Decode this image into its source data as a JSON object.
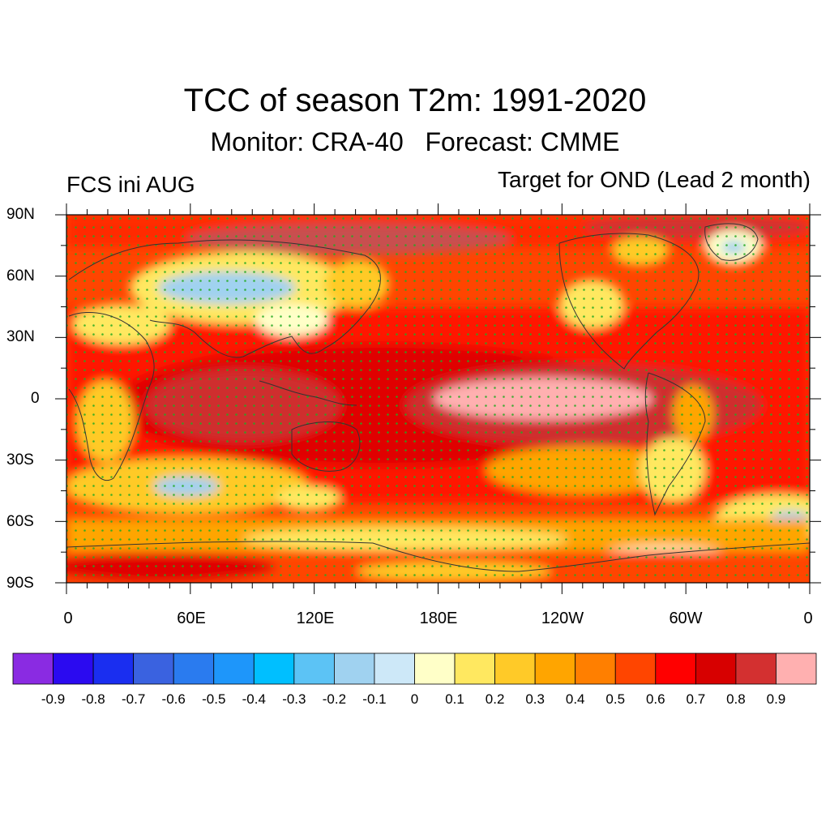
{
  "header": {
    "title": "TCC of season T2m: 1991-2020",
    "subtitle": "Monitor: CRA-40   Forecast: CMME",
    "left_label": "FCS ini AUG",
    "right_label": "Target for OND (Lead 2 month)"
  },
  "axes": {
    "lat_labels": [
      "90N",
      "60N",
      "30N",
      "0",
      "30S",
      "60S",
      "90S"
    ],
    "lon_labels": [
      "0",
      "60E",
      "120E",
      "180E",
      "120W",
      "60W",
      "0"
    ]
  },
  "legend": {
    "colors": [
      "#8a2be2",
      "#2b0af0",
      "#1a2ef0",
      "#3a62e0",
      "#2a7bef",
      "#1e96fa",
      "#00bfff",
      "#5cc3f5",
      "#a0d2f0",
      "#cde8f8",
      "#ffffc8",
      "#ffe860",
      "#ffca28",
      "#ffa500",
      "#ff7f00",
      "#ff4500",
      "#ff0000",
      "#d70000",
      "#d33030",
      "#ffb0b0"
    ],
    "tick_labels": [
      "-0.9",
      "-0.8",
      "-0.7",
      "-0.6",
      "-0.5",
      "-0.4",
      "-0.3",
      "-0.2",
      "-0.1",
      "0",
      "0.1",
      "0.2",
      "0.3",
      "0.4",
      "0.5",
      "0.6",
      "0.7",
      "0.8",
      "0.9"
    ]
  },
  "colors": {
    "stipple": "#22aa22",
    "land_outline": "#333333"
  }
}
